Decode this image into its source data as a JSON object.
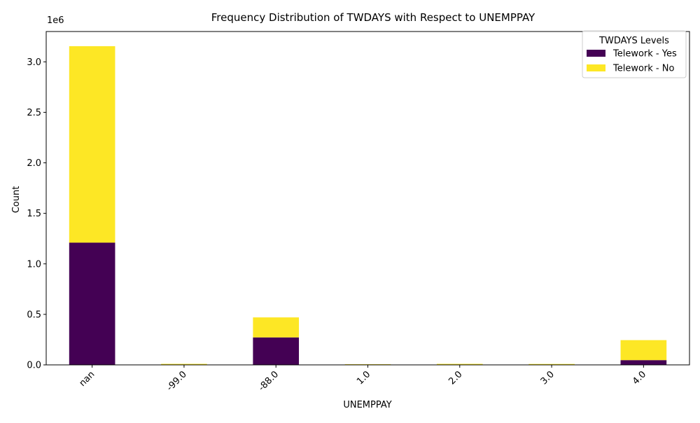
{
  "chart_data": {
    "type": "bar",
    "stacked": true,
    "title": "Frequency Distribution of TWDAYS with Respect to UNEMPPAY",
    "xlabel": "UNEMPPAY",
    "ylabel": "Count",
    "y_offset_label": "1e6",
    "categories": [
      "nan",
      "-99.0",
      "-88.0",
      "1.0",
      "2.0",
      "3.0",
      "4.0"
    ],
    "series": [
      {
        "name": "Telework - Yes",
        "color": "#440154",
        "values": [
          1210000,
          3000,
          272000,
          4000,
          3000,
          3000,
          47000
        ]
      },
      {
        "name": "Telework - No",
        "color": "#fde725",
        "values": [
          1945000,
          7000,
          198000,
          3000,
          7000,
          6000,
          198000
        ]
      }
    ],
    "ylim": [
      0,
      3300000
    ],
    "yticks": [
      0,
      500000,
      1000000,
      1500000,
      2000000,
      2500000,
      3000000
    ],
    "ytick_labels": [
      "0.0",
      "0.5",
      "1.0",
      "1.5",
      "2.0",
      "2.5",
      "3.0"
    ],
    "legend": {
      "title": "TWDAYS Levels",
      "position": "upper-right"
    },
    "grid": false,
    "xtick_rotation": 45
  }
}
